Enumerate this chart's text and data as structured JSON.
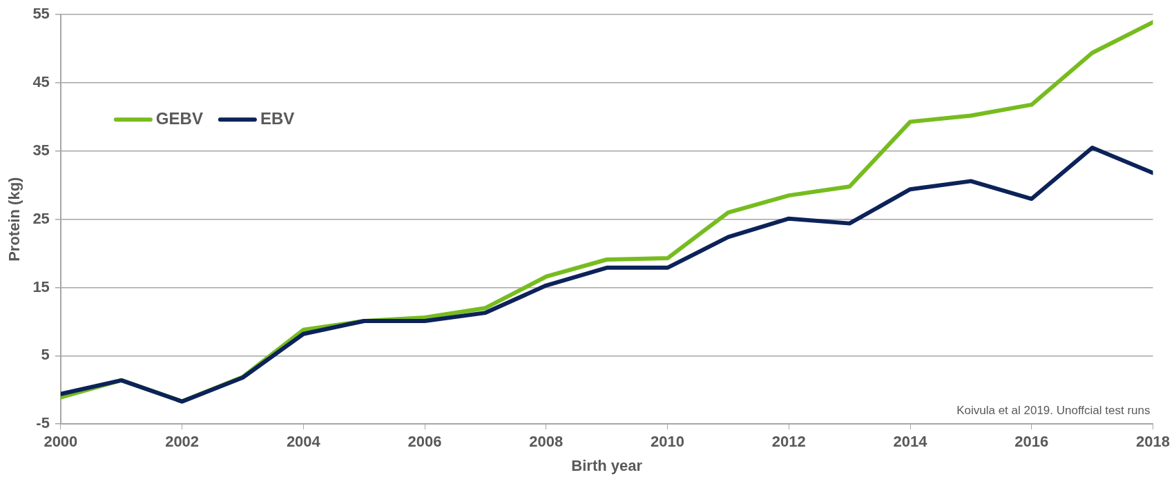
{
  "chart_data": {
    "type": "line",
    "xlabel": "Birth year",
    "ylabel": "Protein (kg)",
    "x": [
      2000,
      2001,
      2002,
      2003,
      2004,
      2005,
      2006,
      2007,
      2008,
      2009,
      2010,
      2011,
      2012,
      2013,
      2014,
      2015,
      2016,
      2017,
      2018
    ],
    "series": [
      {
        "name": "GEBV",
        "color": "#77bc1f",
        "values": [
          -1.1,
          1.4,
          -1.7,
          1.9,
          8.8,
          10.1,
          10.6,
          12.0,
          16.6,
          19.1,
          19.3,
          26.0,
          28.5,
          29.8,
          39.3,
          40.2,
          41.8,
          49.4,
          53.9
        ]
      },
      {
        "name": "EBV",
        "color": "#0c2259",
        "values": [
          -0.6,
          1.4,
          -1.7,
          1.8,
          8.2,
          10.1,
          10.1,
          11.3,
          15.3,
          17.9,
          17.9,
          22.4,
          25.1,
          24.4,
          29.4,
          30.6,
          28.0,
          35.5,
          31.8
        ]
      }
    ],
    "xlim": [
      2000,
      2018
    ],
    "xticks": [
      2000,
      2002,
      2004,
      2006,
      2008,
      2010,
      2012,
      2014,
      2016,
      2018
    ],
    "ylim": [
      -5,
      55
    ],
    "yticks": [
      -5,
      5,
      15,
      25,
      35,
      45,
      55
    ],
    "grid": "y",
    "legend": "top left",
    "marker": "none",
    "line_style": "solid",
    "annotations": [
      "Koivula et al 2019. Unoffcial test runs"
    ]
  }
}
